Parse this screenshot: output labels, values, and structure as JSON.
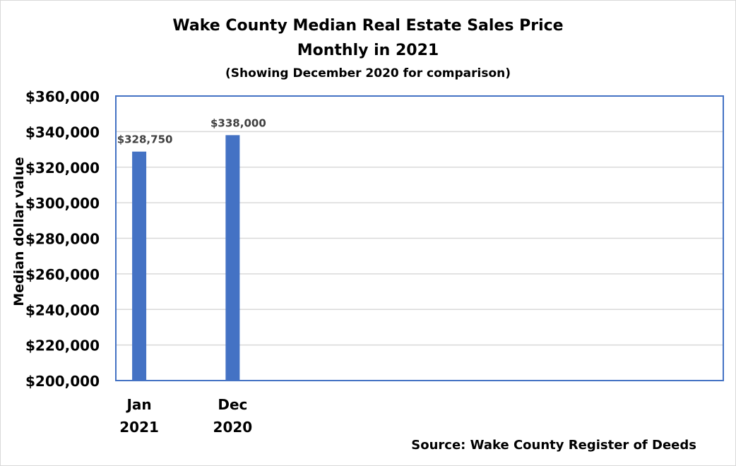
{
  "chart_data": {
    "type": "bar",
    "title": "Wake County Median Real Estate Sales Price",
    "title_line2": "Monthly in 2021",
    "subtitle": "(Showing December 2020 for comparison)",
    "ylabel": "Median dollar value",
    "xlabel": "",
    "categories": [
      [
        "Jan",
        "2021"
      ],
      [
        "Dec",
        "2020"
      ]
    ],
    "values": [
      328750,
      338000
    ],
    "data_labels": [
      "$328,750",
      "$338,000"
    ],
    "ylim": [
      200000,
      360000
    ],
    "yticks": [
      200000,
      220000,
      240000,
      260000,
      280000,
      300000,
      320000,
      340000,
      360000
    ],
    "ytick_labels": [
      "$200,000",
      "$220,000",
      "$240,000",
      "$260,000",
      "$280,000",
      "$300,000",
      "$320,000",
      "$340,000",
      "$360,000"
    ],
    "grid": true,
    "legend": "none",
    "source": "Source: Wake County Register of Deeds",
    "colors": {
      "bar": "#4472C4",
      "plot_border": "#4472C4",
      "grid": "#d9d9d9",
      "label": "#404040"
    }
  }
}
